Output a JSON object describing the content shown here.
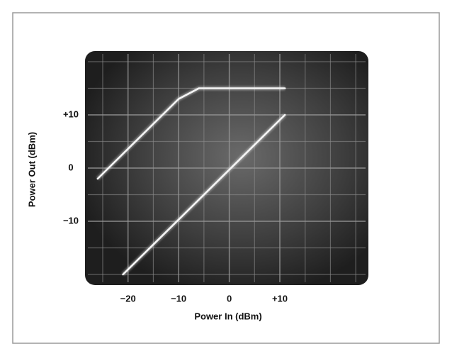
{
  "chart_data": {
    "type": "line",
    "x_label": "Power In (dBm)",
    "y_label": "Power Out (dBm)",
    "xlim": [
      -28.5,
      27.5
    ],
    "ylim": [
      -22,
      22
    ],
    "xticks": [
      {
        "value": -20,
        "label": "−20"
      },
      {
        "value": -10,
        "label": "−10"
      },
      0,
      {
        "value": 10,
        "label": "+10"
      }
    ],
    "yticks": [
      {
        "value": -10,
        "label": "−10"
      },
      0,
      {
        "value": 10,
        "label": "+10"
      }
    ],
    "grid": true,
    "minor_grid": true,
    "series": [
      {
        "color": "#f4f4f4",
        "x": [
          -26,
          -10,
          -6,
          11
        ],
        "values": [
          -2,
          13,
          15,
          15
        ]
      },
      {
        "color": "#f4f4f4",
        "x": [
          -21,
          11
        ],
        "values": [
          -20,
          10
        ]
      }
    ]
  }
}
